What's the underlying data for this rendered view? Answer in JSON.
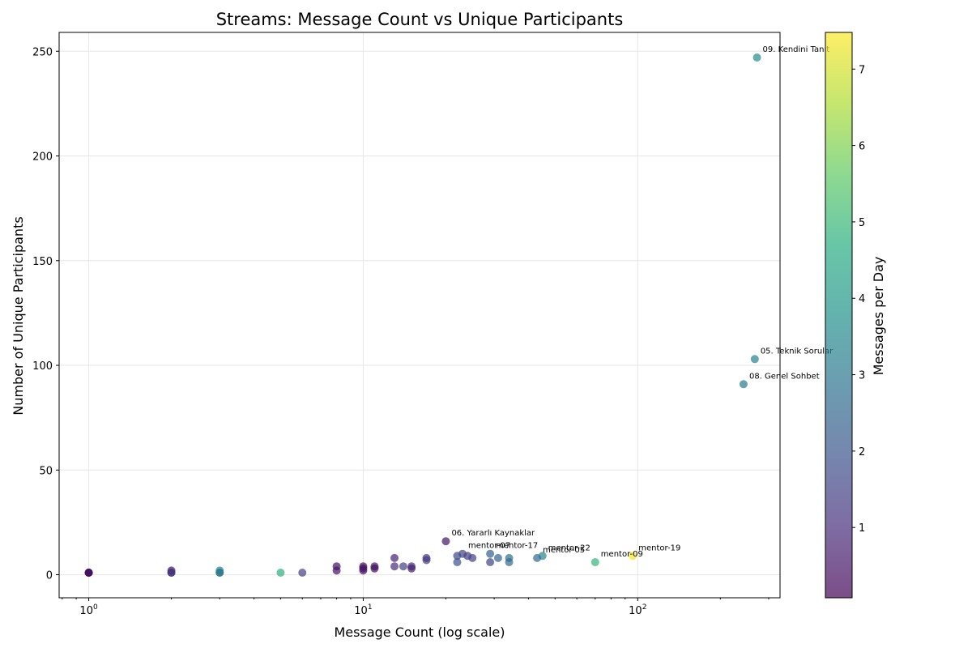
{
  "chart_data": {
    "type": "scatter",
    "title": "Streams: Message Count vs Unique Participants",
    "xlabel": "Message Count (log scale)",
    "ylabel": "Number of Unique Participants",
    "xscale": "log",
    "xlim": [
      0.78,
      330
    ],
    "ylim": [
      -11,
      259
    ],
    "xticks": [
      {
        "value": 1,
        "base": "10",
        "exp": "0"
      },
      {
        "value": 10,
        "base": "10",
        "exp": "1"
      },
      {
        "value": 100,
        "base": "10",
        "exp": "2"
      }
    ],
    "yticks": [
      0,
      50,
      100,
      150,
      200,
      250
    ],
    "grid": true,
    "colorbar": {
      "label": "Messages per Day",
      "colormap": "viridis",
      "range": [
        0.08,
        7.48
      ],
      "ticks": [
        1,
        2,
        3,
        4,
        5,
        6,
        7
      ]
    },
    "points": [
      {
        "x": 272,
        "y": 247,
        "c": 3.6,
        "label": "09. Kendini Tanıt"
      },
      {
        "x": 267,
        "y": 103,
        "c": 3.3,
        "label": "05. Teknik Sorular"
      },
      {
        "x": 243,
        "y": 91,
        "c": 3.1,
        "label": "08. Genel Sohbet"
      },
      {
        "x": 20,
        "y": 16,
        "c": 0.5,
        "label": "06. Yararlı Kaynaklar"
      },
      {
        "x": 23,
        "y": 10,
        "c": 1.6,
        "label": "mentor-07"
      },
      {
        "x": 29,
        "y": 10,
        "c": 2.3,
        "label": "mentor-17"
      },
      {
        "x": 45,
        "y": 9,
        "c": 3.4,
        "label": "mentor-22"
      },
      {
        "x": 43,
        "y": 8,
        "c": 2.6,
        "label": "mentor-05"
      },
      {
        "x": 70,
        "y": 6,
        "c": 4.9,
        "label": "mentor-09"
      },
      {
        "x": 96,
        "y": 9,
        "c": 7.4,
        "label": "mentor-19"
      },
      {
        "x": 1,
        "y": 1,
        "c": 0.4
      },
      {
        "x": 1,
        "y": 1,
        "c": 0.6
      },
      {
        "x": 1,
        "y": 1,
        "c": 0.9
      },
      {
        "x": 1,
        "y": 1,
        "c": 0.2
      },
      {
        "x": 2,
        "y": 2,
        "c": 0.5
      },
      {
        "x": 2,
        "y": 1,
        "c": 1.4
      },
      {
        "x": 2,
        "y": 1,
        "c": 1.1
      },
      {
        "x": 3,
        "y": 2,
        "c": 3.3
      },
      {
        "x": 3,
        "y": 1,
        "c": 2.9
      },
      {
        "x": 3,
        "y": 1,
        "c": 3.1
      },
      {
        "x": 5,
        "y": 1,
        "c": 4.8
      },
      {
        "x": 6,
        "y": 1,
        "c": 1.5
      },
      {
        "x": 8,
        "y": 4,
        "c": 0.4
      },
      {
        "x": 8,
        "y": 2,
        "c": 0.5
      },
      {
        "x": 10,
        "y": 4,
        "c": 0.4
      },
      {
        "x": 10,
        "y": 3,
        "c": 0.3
      },
      {
        "x": 10,
        "y": 2,
        "c": 0.5
      },
      {
        "x": 11,
        "y": 4,
        "c": 0.6
      },
      {
        "x": 11,
        "y": 3,
        "c": 0.3
      },
      {
        "x": 13,
        "y": 8,
        "c": 0.8
      },
      {
        "x": 13,
        "y": 4,
        "c": 1.0
      },
      {
        "x": 14,
        "y": 4,
        "c": 1.5
      },
      {
        "x": 15,
        "y": 4,
        "c": 1.2
      },
      {
        "x": 15,
        "y": 3,
        "c": 0.7
      },
      {
        "x": 17,
        "y": 8,
        "c": 1.3
      },
      {
        "x": 17,
        "y": 7,
        "c": 1.4
      },
      {
        "x": 22,
        "y": 9,
        "c": 1.7
      },
      {
        "x": 22,
        "y": 6,
        "c": 1.9
      },
      {
        "x": 24,
        "y": 9,
        "c": 1.4
      },
      {
        "x": 25,
        "y": 8,
        "c": 1.5
      },
      {
        "x": 29,
        "y": 6,
        "c": 1.6
      },
      {
        "x": 31,
        "y": 8,
        "c": 2.4
      },
      {
        "x": 34,
        "y": 8,
        "c": 2.7
      },
      {
        "x": 34,
        "y": 6,
        "c": 2.6
      }
    ]
  }
}
